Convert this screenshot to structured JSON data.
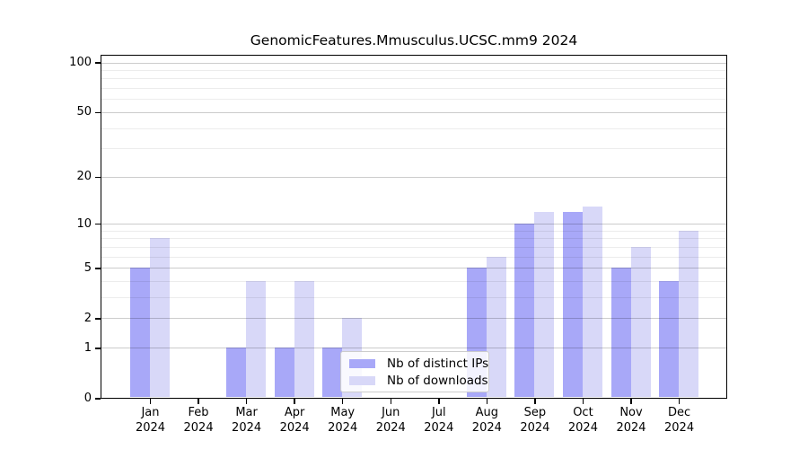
{
  "title": "GenomicFeatures.Mmusculus.UCSC.mm9 2024",
  "chart_data": {
    "type": "bar",
    "title": "GenomicFeatures.Mmusculus.UCSC.mm9 2024",
    "categories": [
      "Jan",
      "Feb",
      "Mar",
      "Apr",
      "May",
      "Jun",
      "Jul",
      "Aug",
      "Sep",
      "Oct",
      "Nov",
      "Dec"
    ],
    "category_year": "2024",
    "series": [
      {
        "name": "Nb of distinct IPs",
        "color": "#a8a8f8",
        "values": [
          5,
          0,
          1,
          1,
          1,
          0,
          0,
          5,
          10,
          12,
          5,
          4
        ]
      },
      {
        "name": "Nb of downloads",
        "color": "#d8d8f8",
        "values": [
          8,
          0,
          4,
          4,
          2,
          0,
          0,
          6,
          12,
          13,
          7,
          9
        ]
      }
    ],
    "y_axis": {
      "scale": "log10(1+x)",
      "tick_values": [
        0,
        1,
        2,
        5,
        10,
        20,
        50,
        100
      ],
      "minor_gridlines": [
        3,
        4,
        6,
        7,
        8,
        9,
        30,
        40,
        60,
        70,
        80,
        90
      ],
      "range_top": 100
    },
    "x_axis": {
      "second_line": "2024"
    },
    "legend": {
      "position": "inside-bottom-center",
      "entries": [
        "Nb of distinct IPs",
        "Nb of downloads"
      ]
    },
    "grid": true
  },
  "colors": {
    "bar_distinct_ips": "#a8a8f8",
    "bar_downloads": "#d8d8f8",
    "axis": "#000000",
    "grid_major": "#cdcdcd",
    "grid_minor": "#ececec",
    "legend_border": "#cccccc",
    "background": "#ffffff"
  }
}
